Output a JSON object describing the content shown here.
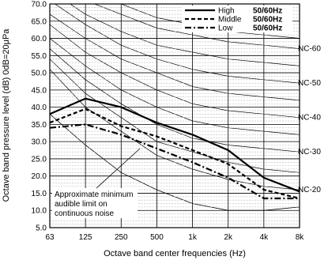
{
  "chart_data": {
    "type": "line",
    "xlabel": "Octave band center frequencies (Hz)",
    "ylabel": "Octave band pressure level (dB) 0dB=20μPa",
    "x_tick_labels": [
      "63",
      "125",
      "250",
      "500",
      "1k",
      "2k",
      "4k",
      "8k"
    ],
    "y_ticks": [
      "5.0",
      "10.0",
      "15.0",
      "20.0",
      "25.0",
      "30.0",
      "35.0",
      "40.0",
      "45.0",
      "50.0",
      "55.0",
      "60.0",
      "65.0",
      "70.0"
    ],
    "ylim": [
      5,
      70
    ],
    "grid": true,
    "legend_position": "top-right",
    "series": [
      {
        "name": "High",
        "freq": "50/60Hz",
        "color": "#000000",
        "dash": "solid",
        "values": [
          38.0,
          42.5,
          40.0,
          35.5,
          32.0,
          27.5,
          19.5,
          15.5
        ]
      },
      {
        "name": "Middle",
        "freq": "50/60Hz",
        "color": "#000000",
        "dash": "dashed",
        "values": [
          35.5,
          39.5,
          34.5,
          31.5,
          27.5,
          23.5,
          16.0,
          13.5
        ]
      },
      {
        "name": "Low",
        "freq": "50/60Hz",
        "color": "#000000",
        "dash": "dashdot",
        "values": [
          34.0,
          35.0,
          32.0,
          28.0,
          24.0,
          19.5,
          13.5,
          13.5
        ]
      }
    ],
    "nc_curves": [
      {
        "label": "NC-60",
        "values": [
          77,
          71,
          67,
          63,
          61,
          59,
          58,
          57
        ]
      },
      {
        "label": "NC-50",
        "values": [
          71,
          64,
          58,
          54,
          51,
          49,
          48,
          47
        ]
      },
      {
        "label": "NC-40",
        "values": [
          64,
          56,
          50,
          45,
          41,
          39,
          38,
          37
        ]
      },
      {
        "label": "NC-30",
        "values": [
          57,
          48,
          41,
          35,
          31,
          29,
          28,
          27
        ]
      },
      {
        "label": "NC-20",
        "values": [
          51,
          40,
          33,
          26,
          22,
          19,
          17,
          16
        ]
      }
    ],
    "extra_curves": [
      [
        80,
        74,
        70,
        66,
        64,
        62,
        61,
        60
      ],
      [
        74,
        67,
        62,
        58,
        56,
        54,
        53,
        52
      ],
      [
        67,
        60,
        54,
        50,
        46,
        44,
        43,
        42
      ],
      [
        60,
        52,
        45,
        40,
        36,
        34,
        33,
        32
      ],
      [
        54,
        44,
        37,
        30,
        27,
        24,
        22,
        21
      ]
    ],
    "audible_limit": {
      "label_lines": [
        "Approximate minimum",
        "audible limit on",
        "continuous noise"
      ],
      "values": [
        38,
        29,
        21,
        16,
        12,
        10,
        10,
        11
      ]
    }
  }
}
